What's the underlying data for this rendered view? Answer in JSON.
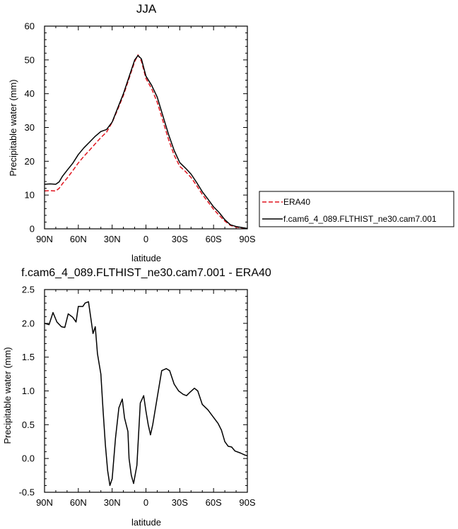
{
  "chart_data": [
    {
      "type": "line",
      "title": "JJA",
      "xlabel": "latitude",
      "ylabel": "Precipitable water (mm)",
      "xlim": [
        90,
        -90
      ],
      "ylim": [
        0,
        60
      ],
      "x_ticks": [
        90,
        60,
        30,
        0,
        -30,
        -60,
        -90
      ],
      "x_tick_labels": [
        "90N",
        "60N",
        "30N",
        "0",
        "30S",
        "60S",
        "90S"
      ],
      "y_ticks": [
        0,
        10,
        20,
        30,
        40,
        50,
        60
      ],
      "y_tick_labels": [
        "0",
        "10",
        "20",
        "30",
        "40",
        "50",
        "60"
      ],
      "legend_position": "right",
      "series": [
        {
          "name": "ERA40",
          "color": "#e0141e",
          "dash": "dashed",
          "points": [
            [
              90,
              11.2
            ],
            [
              85,
              11.3
            ],
            [
              80,
              11.2
            ],
            [
              77,
              12
            ],
            [
              74,
              13.4
            ],
            [
              70,
              15
            ],
            [
              65,
              17.2
            ],
            [
              60,
              19.5
            ],
            [
              55,
              21.5
            ],
            [
              50,
              23.3
            ],
            [
              45,
              25.2
            ],
            [
              40,
              27
            ],
            [
              35,
              28.6
            ],
            [
              30,
              31.5
            ],
            [
              25,
              35.4
            ],
            [
              20,
              39.5
            ],
            [
              15,
              44.5
            ],
            [
              10,
              49.5
            ],
            [
              7,
              51.5
            ],
            [
              4,
              49.6
            ],
            [
              0,
              44.5
            ],
            [
              -5,
              41.5
            ],
            [
              -10,
              37.5
            ],
            [
              -15,
              32
            ],
            [
              -20,
              26.5
            ],
            [
              -25,
              21.8
            ],
            [
              -30,
              18.5
            ],
            [
              -35,
              17
            ],
            [
              -40,
              15.2
            ],
            [
              -45,
              12.8
            ],
            [
              -50,
              10.2
            ],
            [
              -55,
              8
            ],
            [
              -60,
              5.8
            ],
            [
              -65,
              4
            ],
            [
              -70,
              2.3
            ],
            [
              -75,
              1
            ],
            [
              -80,
              0.5
            ],
            [
              -85,
              0.3
            ],
            [
              -90,
              0.1
            ]
          ]
        },
        {
          "name": "f.cam6_4_089.FLTHIST_ne30.cam7.001",
          "color": "#000000",
          "dash": "solid",
          "points": [
            [
              90,
              13.2
            ],
            [
              85,
              13.3
            ],
            [
              80,
              13.2
            ],
            [
              77,
              13.9
            ],
            [
              74,
              15.6
            ],
            [
              70,
              17.3
            ],
            [
              65,
              19.4
            ],
            [
              60,
              22
            ],
            [
              55,
              24
            ],
            [
              50,
              25.7
            ],
            [
              45,
              27.4
            ],
            [
              40,
              28.8
            ],
            [
              35,
              29.4
            ],
            [
              30,
              31.6
            ],
            [
              25,
              35.8
            ],
            [
              20,
              40
            ],
            [
              15,
              45
            ],
            [
              10,
              50
            ],
            [
              7,
              51.3
            ],
            [
              4,
              50.3
            ],
            [
              0,
              45.2
            ],
            [
              -5,
              42.5
            ],
            [
              -10,
              39
            ],
            [
              -15,
              33.5
            ],
            [
              -20,
              28
            ],
            [
              -25,
              23.2
            ],
            [
              -30,
              19.6
            ],
            [
              -35,
              18
            ],
            [
              -40,
              16.2
            ],
            [
              -45,
              13.7
            ],
            [
              -50,
              11
            ],
            [
              -55,
              8.8
            ],
            [
              -60,
              6.5
            ],
            [
              -65,
              4.8
            ],
            [
              -70,
              2.7
            ],
            [
              -75,
              1.2
            ],
            [
              -80,
              0.7
            ],
            [
              -85,
              0.4
            ],
            [
              -90,
              0.1
            ]
          ]
        }
      ]
    },
    {
      "type": "line",
      "title": "f.cam6_4_089.FLTHIST_ne30.cam7.001 - ERA40",
      "xlabel": "latitude",
      "ylabel": "Precipitable water (mm)",
      "xlim": [
        90,
        -90
      ],
      "ylim": [
        -0.5,
        2.5
      ],
      "x_ticks": [
        90,
        60,
        30,
        0,
        -30,
        -60,
        -90
      ],
      "x_tick_labels": [
        "90N",
        "60N",
        "30N",
        "0",
        "30S",
        "60S",
        "90S"
      ],
      "y_ticks": [
        -0.5,
        0,
        0.5,
        1,
        1.5,
        2,
        2.5
      ],
      "y_tick_labels": [
        "-0.5",
        "0.0",
        "0.5",
        "1.0",
        "1.5",
        "2.0",
        "2.5"
      ],
      "series": [
        {
          "name": "",
          "color": "#000000",
          "dash": "solid",
          "points": [
            [
              90,
              2.0
            ],
            [
              86,
              1.98
            ],
            [
              82.5,
              2.16
            ],
            [
              79,
              2.02
            ],
            [
              75,
              1.95
            ],
            [
              72,
              1.94
            ],
            [
              69,
              2.14
            ],
            [
              65,
              2.09
            ],
            [
              62,
              2.02
            ],
            [
              60,
              2.25
            ],
            [
              56,
              2.25
            ],
            [
              54,
              2.3
            ],
            [
              51,
              2.32
            ],
            [
              47,
              1.85
            ],
            [
              45,
              1.95
            ],
            [
              43,
              1.55
            ],
            [
              40,
              1.25
            ],
            [
              38,
              0.7
            ],
            [
              36,
              0.2
            ],
            [
              34,
              -0.18
            ],
            [
              32,
              -0.4
            ],
            [
              30,
              -0.3
            ],
            [
              27,
              0.3
            ],
            [
              24,
              0.75
            ],
            [
              21,
              0.88
            ],
            [
              19,
              0.6
            ],
            [
              16,
              0.4
            ],
            [
              15,
              0.0
            ],
            [
              13,
              -0.25
            ],
            [
              11,
              -0.37
            ],
            [
              8,
              -0.1
            ],
            [
              5,
              0.82
            ],
            [
              2,
              0.93
            ],
            [
              0,
              0.7
            ],
            [
              -2,
              0.5
            ],
            [
              -4,
              0.35
            ],
            [
              -6,
              0.5
            ],
            [
              -10,
              0.9
            ],
            [
              -14,
              1.3
            ],
            [
              -18,
              1.33
            ],
            [
              -21,
              1.3
            ],
            [
              -25,
              1.1
            ],
            [
              -29,
              1.0
            ],
            [
              -33,
              0.95
            ],
            [
              -36,
              0.93
            ],
            [
              -39,
              0.98
            ],
            [
              -43,
              1.04
            ],
            [
              -46,
              1.0
            ],
            [
              -50,
              0.8
            ],
            [
              -55,
              0.72
            ],
            [
              -59,
              0.63
            ],
            [
              -64,
              0.52
            ],
            [
              -67,
              0.42
            ],
            [
              -70,
              0.25
            ],
            [
              -73,
              0.18
            ],
            [
              -76,
              0.17
            ],
            [
              -79,
              0.11
            ],
            [
              -84,
              0.08
            ],
            [
              -88,
              0.05
            ],
            [
              -90,
              0.04
            ]
          ]
        }
      ]
    }
  ]
}
